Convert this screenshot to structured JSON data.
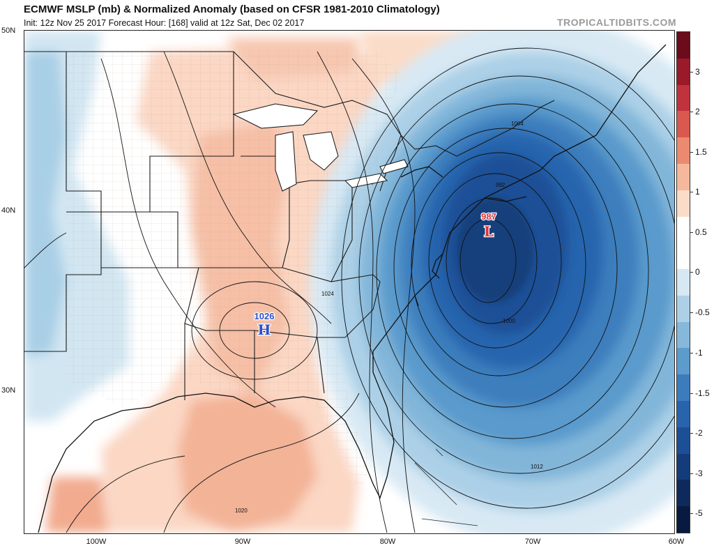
{
  "header": {
    "title": "ECMWF MSLP (mb) & Normalized Anomaly (based on CFSR 1981-2010 Climatology)",
    "subtitle": "Init: 12z Nov 25 2017   Forecast Hour: [168]   valid at 12z Sat, Dec 02 2017",
    "brand": "TROPICALTIDBITS.COM"
  },
  "map": {
    "lat_labels": [
      "50N",
      "40N",
      "30N"
    ],
    "lon_labels": [
      "100W",
      "90W",
      "80W",
      "70W",
      "60W"
    ],
    "high": {
      "value": "1026",
      "letter": "H",
      "color": "#2b50c8"
    },
    "low": {
      "value": "987",
      "letter": "L",
      "color": "#d8323c"
    },
    "isobar_labels": [
      "1004",
      "992",
      "1000",
      "1012",
      "1024",
      "1020"
    ]
  },
  "colorbar": {
    "labels": [
      "3",
      "2",
      "1.5",
      "1",
      "0.5",
      "0",
      "-0.5",
      "-1",
      "-1.5",
      "-2",
      "-3",
      "-5"
    ],
    "colors": [
      "#6b0b1c",
      "#9a1a2a",
      "#c0323c",
      "#d9584f",
      "#eb8a70",
      "#f5b89c",
      "#fbdcc8",
      "#ffffff",
      "#ffffff",
      "#d6e8f3",
      "#aed0e6",
      "#86b8da",
      "#5c9bcc",
      "#3c7cbd",
      "#2864ae",
      "#1c4f96",
      "#153c7a",
      "#0e2a5c",
      "#081a40"
    ]
  }
}
